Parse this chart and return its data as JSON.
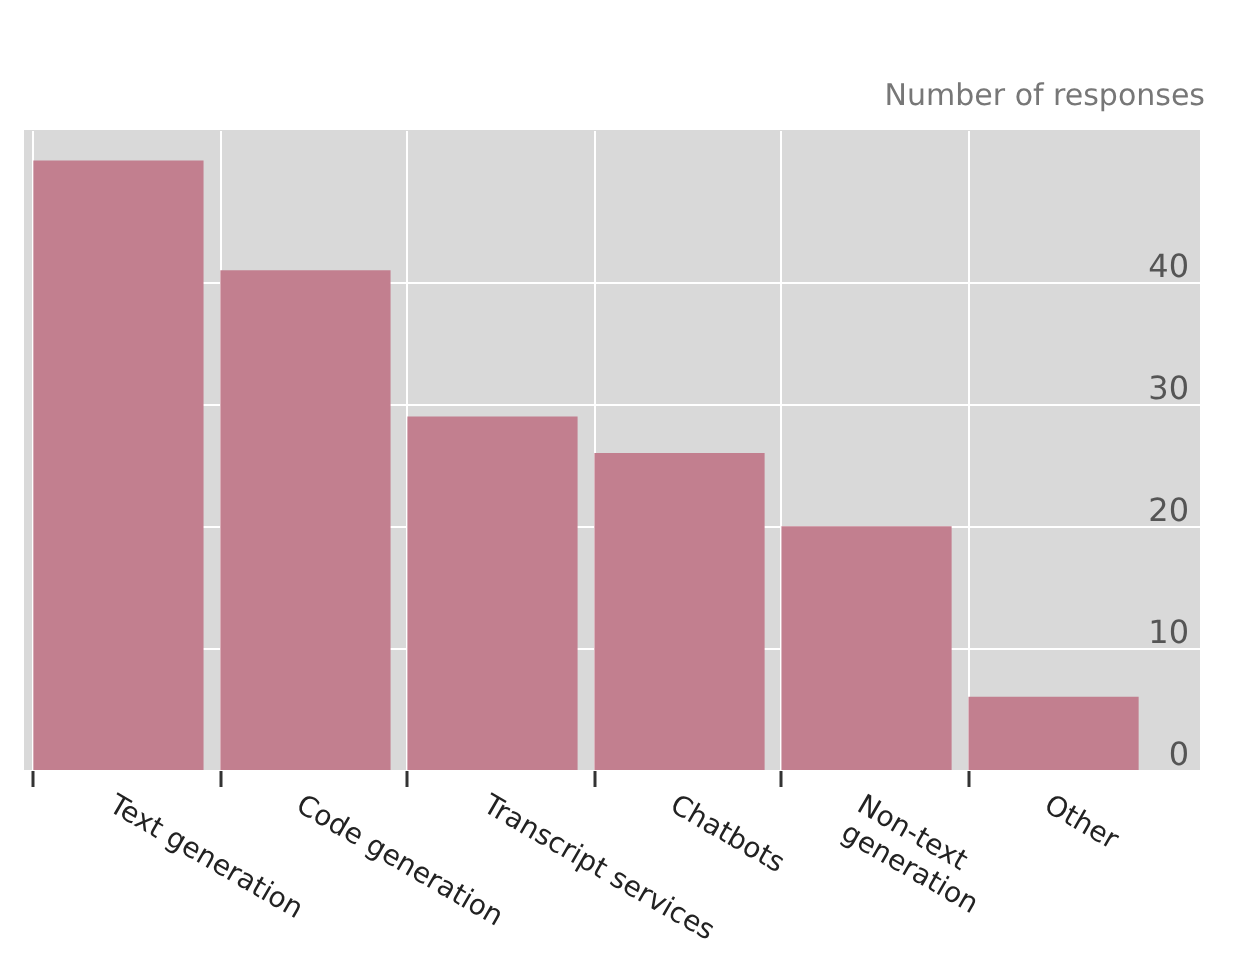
{
  "chart_data": {
    "type": "bar",
    "ylabel": "Number of responses",
    "categories": [
      "Text generation",
      "Code generation",
      "Transcript services",
      "Chatbots",
      "Non-text\ngeneration",
      "Other"
    ],
    "values": [
      50,
      41,
      29,
      26,
      20,
      6
    ],
    "color": "#c27f8f",
    "ylim": [
      0,
      52.5
    ],
    "yticks": [
      0,
      10,
      20,
      30,
      40
    ],
    "grid": true
  }
}
